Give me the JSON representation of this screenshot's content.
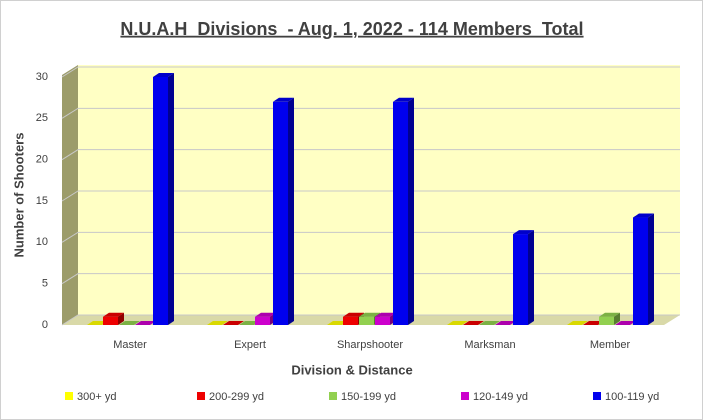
{
  "chart_data": {
    "type": "bar3d",
    "title": "N.U.A.H  Divisions  - Aug. 1, 2022 - 114 Members  Total",
    "x_label": "Division & Distance",
    "y_label": "Number of Shooters",
    "categories": [
      "Master",
      "Expert",
      "Sharpshooter",
      "Marksman",
      "Member"
    ],
    "series": [
      {
        "name": "300+ yd",
        "color": "#ffff00",
        "values": [
          0,
          0,
          0,
          0,
          0
        ]
      },
      {
        "name": "200-299 yd",
        "color": "#ee0000",
        "values": [
          1,
          0,
          1,
          0,
          0
        ]
      },
      {
        "name": "150-199 yd",
        "color": "#92d050",
        "values": [
          0,
          0,
          1,
          0,
          1
        ]
      },
      {
        "name": "120-149 yd",
        "color": "#cc00cc",
        "values": [
          0,
          1,
          1,
          0,
          0
        ]
      },
      {
        "name": "100-119 yd",
        "color": "#0000ee",
        "values": [
          30,
          27,
          27,
          11,
          13
        ]
      }
    ],
    "ylim": [
      0,
      30
    ],
    "yticks": [
      0,
      5,
      10,
      15,
      20,
      25,
      30
    ],
    "grid": true,
    "legend": "bottom"
  }
}
